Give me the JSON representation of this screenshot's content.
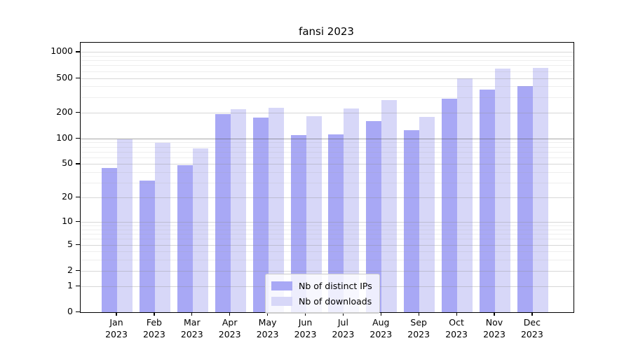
{
  "title": "fansi 2023",
  "chart_data": {
    "type": "bar",
    "title": "fansi 2023",
    "categories": [
      "Jan 2023",
      "Feb 2023",
      "Mar 2023",
      "Apr 2023",
      "May 2023",
      "Jun 2023",
      "Jul 2023",
      "Aug 2023",
      "Sep 2023",
      "Oct 2023",
      "Nov 2023",
      "Dec 2023"
    ],
    "series": [
      {
        "name": "Nb of distinct IPs",
        "color": "#a8a8f5",
        "values": [
          45,
          32,
          49,
          190,
          175,
          109,
          111,
          160,
          125,
          289,
          368,
          406
        ]
      },
      {
        "name": "Nb of downloads",
        "color": "#d7d7f8",
        "values": [
          98,
          88,
          76,
          220,
          226,
          181,
          221,
          277,
          179,
          498,
          640,
          656
        ]
      }
    ],
    "xlabel": "",
    "ylabel": "",
    "yscale": "log1p",
    "yticks": [
      0,
      1,
      2,
      5,
      10,
      20,
      50,
      100,
      200,
      500,
      1000
    ],
    "minor_grid_multiples": [
      3,
      4,
      6,
      7,
      8,
      9
    ],
    "minor_grid_decades": [
      1,
      10,
      100
    ],
    "emphasis_gridline": 100,
    "ylim": [
      0,
      1280
    ],
    "grid": true,
    "legend_position": "lower center"
  },
  "legend": {
    "items": [
      {
        "label": "Nb of distinct IPs",
        "color": "#a8a8f5"
      },
      {
        "label": "Nb of downloads",
        "color": "#d7d7f8"
      }
    ]
  },
  "colors": {
    "grid_major": "rgba(140,140,140,0.35)",
    "grid_minor": "rgba(160,160,160,0.18)",
    "grid_emphasis": "rgba(80,80,80,0.5)",
    "axis": "#000000",
    "background": "#ffffff"
  }
}
